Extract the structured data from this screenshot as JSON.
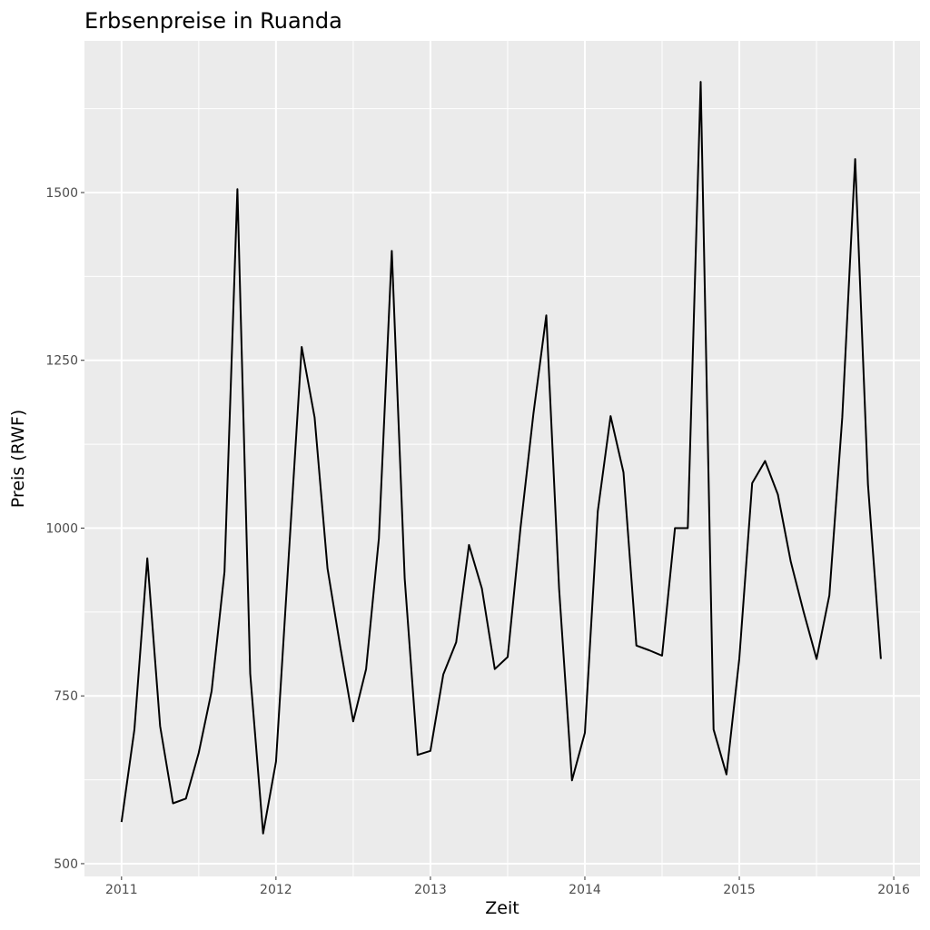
{
  "chart_data": {
    "type": "line",
    "title": "Erbsenpreise in Ruanda",
    "xlabel": "Zeit",
    "ylabel": "Preis (RWF)",
    "xlim": [
      2010.76,
      2016.17
    ],
    "ylim": [
      481,
      1726
    ],
    "x_ticks": [
      2011,
      2012,
      2013,
      2014,
      2015,
      2016
    ],
    "x_tick_labels": [
      "2011",
      "2012",
      "2013",
      "2014",
      "2015",
      "2016"
    ],
    "y_ticks": [
      500,
      750,
      1000,
      1250,
      1500
    ],
    "y_tick_labels": [
      "500",
      "750",
      "1000",
      "1250",
      "1500"
    ],
    "grid": true,
    "line_color": "#000000",
    "panel_color": "#ebebeb",
    "x_start": 2011,
    "x_step_months": 1,
    "values": [
      562,
      700,
      955,
      705,
      590,
      597,
      665,
      757,
      935,
      1505,
      783,
      545,
      652,
      960,
      1270,
      1165,
      940,
      823,
      712,
      790,
      985,
      1413,
      925,
      662,
      668,
      782,
      830,
      975,
      910,
      790,
      808,
      1000,
      1170,
      1317,
      910,
      624,
      695,
      1025,
      1167,
      1083,
      825,
      818,
      810,
      1000,
      1000,
      1665,
      700,
      633,
      805,
      1067,
      1100,
      1050,
      950,
      875,
      805,
      900,
      1165,
      1550,
      1065,
      805
    ]
  }
}
